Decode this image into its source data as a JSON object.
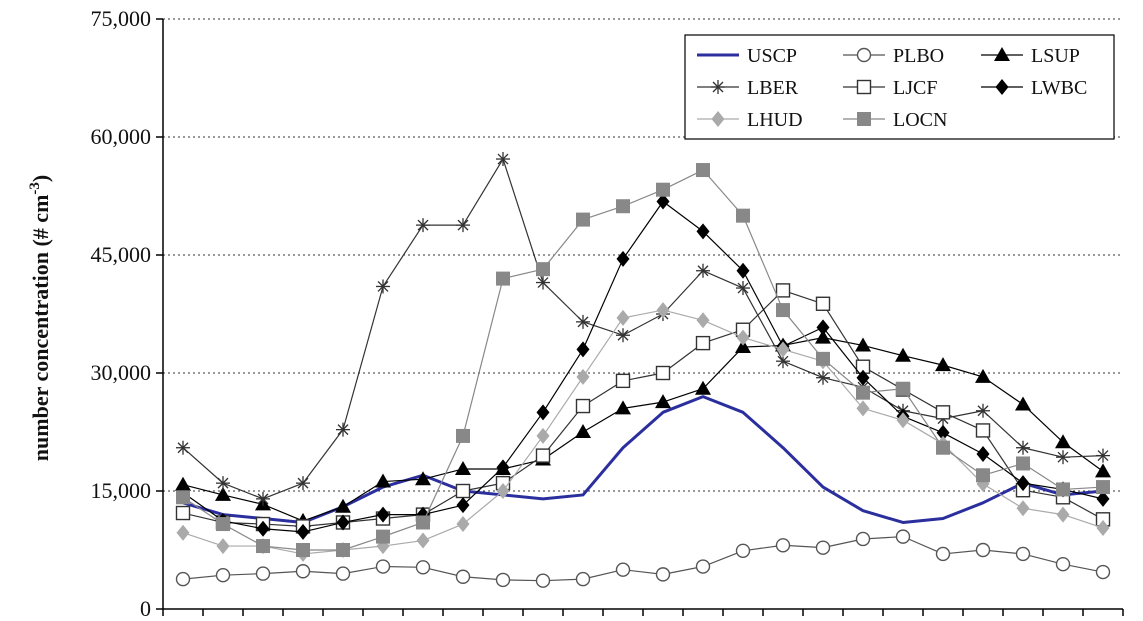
{
  "chart_data": {
    "type": "line",
    "title": "",
    "xlabel": "",
    "ylabel": "number concentration (# cm",
    "ylabel_sup": "-3",
    "ylabel_close": ")",
    "ylim": [
      0,
      75000
    ],
    "yticks": [
      0,
      15000,
      30000,
      45000,
      60000,
      75000
    ],
    "ytick_labels": [
      "0",
      "15,000",
      "30,000",
      "45,000",
      "60,000",
      "75,000"
    ],
    "grid": "horizontal-dotted",
    "legend_position": "top-right",
    "x_points": 24,
    "series": [
      {
        "name": "USCP",
        "marker": "none",
        "color": "#2b2f9e",
        "values": [
          13500,
          12000,
          11500,
          11000,
          13000,
          15500,
          17000,
          15000,
          14500,
          14000,
          14500,
          20500,
          25000,
          27000,
          25000,
          20500,
          15500,
          12500,
          11000,
          11500,
          13500,
          16000,
          14500,
          15000
        ]
      },
      {
        "name": "PLBO",
        "marker": "open-circle",
        "color": "#555555",
        "values": [
          3800,
          4300,
          4500,
          4800,
          4500,
          5400,
          5300,
          4100,
          3700,
          3600,
          3800,
          5000,
          4400,
          5400,
          7400,
          8100,
          7800,
          8900,
          9200,
          7000,
          7500,
          7000,
          5700,
          4700
        ]
      },
      {
        "name": "LSUP",
        "marker": "filled-triangle",
        "color": "#000000",
        "values": [
          15800,
          14500,
          13300,
          11200,
          13000,
          16200,
          16500,
          17800,
          17800,
          19000,
          22500,
          25500,
          26300,
          28000,
          33300,
          33500,
          34500,
          33500,
          32200,
          31000,
          29500,
          26000,
          21200,
          17500
        ]
      },
      {
        "name": "LBER",
        "marker": "asterisk",
        "color": "#333333",
        "values": [
          20500,
          16000,
          14000,
          16000,
          22800,
          41000,
          48800,
          48800,
          57200,
          41500,
          36500,
          34800,
          37500,
          43000,
          40800,
          31500,
          29400,
          28200,
          25200,
          24200,
          25200,
          20500,
          19300,
          19500
        ]
      },
      {
        "name": "LJCF",
        "marker": "open-square",
        "color": "#333333",
        "values": [
          12200,
          11000,
          10800,
          10500,
          11000,
          11500,
          12000,
          15000,
          16000,
          19500,
          25800,
          29000,
          30000,
          33800,
          35500,
          40500,
          38800,
          30800,
          27900,
          25000,
          22700,
          15100,
          14200,
          11400
        ]
      },
      {
        "name": "LWBC",
        "marker": "filled-diamond",
        "color": "#000000",
        "values": [
          14800,
          11200,
          10200,
          9800,
          11000,
          12000,
          12000,
          13200,
          18000,
          25000,
          33000,
          44500,
          51800,
          48000,
          43000,
          33400,
          35800,
          29400,
          24500,
          22400,
          19700,
          16000,
          15200,
          14000
        ]
      },
      {
        "name": "LHUD",
        "marker": "filled-diamond",
        "color": "#aaaaaa",
        "values": [
          9700,
          8000,
          8000,
          7000,
          7500,
          8000,
          8700,
          10800,
          15000,
          22000,
          29500,
          37000,
          38000,
          36700,
          34500,
          33000,
          31500,
          25500,
          24000,
          21000,
          15900,
          12800,
          12000,
          10300
        ]
      },
      {
        "name": "LOCN",
        "marker": "filled-square",
        "color": "#888888",
        "values": [
          14200,
          10800,
          8000,
          7500,
          7500,
          9200,
          11000,
          22000,
          42000,
          43200,
          49500,
          51200,
          53300,
          55800,
          50000,
          38000,
          31800,
          27500,
          28000,
          20500,
          17000,
          18500,
          15200,
          15500
        ]
      }
    ]
  }
}
